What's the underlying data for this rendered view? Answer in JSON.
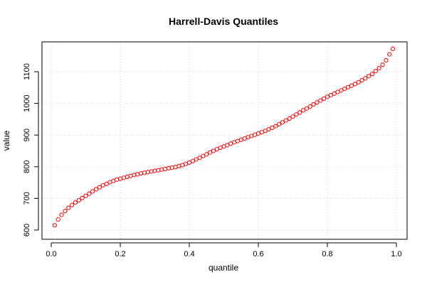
{
  "chart_data": {
    "type": "scatter",
    "title": "Harrell-Davis Quantiles",
    "xlabel": "quantile",
    "ylabel": "value",
    "xlim": [
      0,
      1
    ],
    "ylim": [
      600,
      1175
    ],
    "xticks": [
      0.0,
      0.2,
      0.4,
      0.6,
      0.8,
      1.0
    ],
    "xtick_labels": [
      "0.0",
      "0.2",
      "0.4",
      "0.6",
      "0.8",
      "1.0"
    ],
    "yticks": [
      600,
      700,
      800,
      900,
      1000,
      1100
    ],
    "ytick_labels": [
      "600",
      "700",
      "800",
      "900",
      "1000",
      "1100"
    ],
    "grid": true,
    "marker_color": "#ff0000",
    "marker": "open-circle",
    "series": [
      {
        "x": [
          0.01,
          0.02,
          0.03,
          0.04,
          0.05,
          0.06,
          0.07,
          0.08,
          0.09,
          0.1,
          0.11,
          0.12,
          0.13,
          0.14,
          0.15,
          0.16,
          0.17,
          0.18,
          0.19,
          0.2,
          0.21,
          0.22,
          0.23,
          0.24,
          0.25,
          0.26,
          0.27,
          0.28,
          0.29,
          0.3,
          0.31,
          0.32,
          0.33,
          0.34,
          0.35,
          0.36,
          0.37,
          0.38,
          0.39,
          0.4,
          0.41,
          0.42,
          0.43,
          0.44,
          0.45,
          0.46,
          0.47,
          0.48,
          0.49,
          0.5,
          0.51,
          0.52,
          0.53,
          0.54,
          0.55,
          0.56,
          0.57,
          0.58,
          0.59,
          0.6,
          0.61,
          0.62,
          0.63,
          0.64,
          0.65,
          0.66,
          0.67,
          0.68,
          0.69,
          0.7,
          0.71,
          0.72,
          0.73,
          0.74,
          0.75,
          0.76,
          0.77,
          0.78,
          0.79,
          0.8,
          0.81,
          0.82,
          0.83,
          0.84,
          0.85,
          0.86,
          0.87,
          0.88,
          0.89,
          0.9,
          0.91,
          0.92,
          0.93,
          0.94,
          0.95,
          0.96,
          0.97,
          0.98,
          0.99
        ],
        "y": [
          615,
          633,
          648,
          660,
          670,
          679,
          687,
          694,
          701,
          708,
          715,
          722,
          729,
          735,
          741,
          746,
          751,
          755,
          759,
          762,
          765,
          768,
          771,
          774,
          776,
          779,
          781,
          783,
          785,
          787,
          789,
          791,
          793,
          795,
          797,
          799,
          802,
          805,
          809,
          813,
          818,
          823,
          828,
          834,
          839,
          845,
          850,
          855,
          860,
          864,
          868,
          873,
          877,
          881,
          885,
          889,
          893,
          897,
          901,
          905,
          909,
          913,
          918,
          923,
          928,
          934,
          940,
          946,
          952,
          958,
          965,
          971,
          978,
          984,
          990,
          997,
          1003,
          1009,
          1015,
          1021,
          1026,
          1031,
          1036,
          1041,
          1046,
          1051,
          1056,
          1061,
          1067,
          1073,
          1079,
          1086,
          1093,
          1102,
          1111,
          1122,
          1136,
          1155,
          1172
        ]
      }
    ]
  }
}
